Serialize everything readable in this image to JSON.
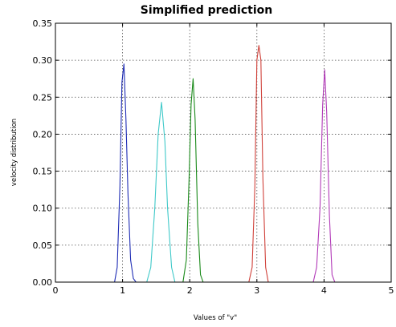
{
  "chart_data": {
    "type": "line",
    "title": "Simplified prediction",
    "xlabel": "Values of \"v\"",
    "ylabel": "velocity distribution",
    "xlim": [
      0,
      5
    ],
    "ylim": [
      0,
      0.35
    ],
    "xticks": [
      0,
      1,
      2,
      3,
      4,
      5
    ],
    "xtick_labels": [
      "0",
      "1",
      "2",
      "3",
      "4",
      "5"
    ],
    "yticks": [
      0,
      0.05,
      0.1,
      0.15,
      0.2,
      0.25,
      0.3,
      0.35
    ],
    "ytick_labels": [
      "0.00",
      "0.05",
      "0.10",
      "0.15",
      "0.20",
      "0.25",
      "0.30",
      "0.35"
    ],
    "grid": true,
    "legend": "none",
    "series": [
      {
        "color": "#1f2db5",
        "x": [
          0.88,
          0.92,
          0.96,
          0.99,
          1.02,
          1.05,
          1.08,
          1.12,
          1.16,
          1.2
        ],
        "y": [
          0.0,
          0.02,
          0.13,
          0.27,
          0.295,
          0.22,
          0.12,
          0.03,
          0.005,
          0.0
        ]
      },
      {
        "color": "#3fc9c9",
        "x": [
          1.36,
          1.42,
          1.48,
          1.53,
          1.58,
          1.63,
          1.67,
          1.73,
          1.78
        ],
        "y": [
          0.0,
          0.02,
          0.1,
          0.2,
          0.243,
          0.19,
          0.1,
          0.02,
          0.0
        ]
      },
      {
        "color": "#1a8a1a",
        "x": [
          1.9,
          1.95,
          1.99,
          2.02,
          2.05,
          2.08,
          2.12,
          2.16,
          2.2
        ],
        "y": [
          0.0,
          0.03,
          0.14,
          0.24,
          0.275,
          0.22,
          0.08,
          0.01,
          0.0
        ]
      },
      {
        "color": "#d0413a",
        "x": [
          2.88,
          2.93,
          2.97,
          3.0,
          3.03,
          3.06,
          3.09,
          3.13,
          3.17
        ],
        "y": [
          0.0,
          0.02,
          0.13,
          0.3,
          0.32,
          0.3,
          0.14,
          0.02,
          0.0
        ]
      },
      {
        "color": "#b23ab8",
        "x": [
          3.84,
          3.89,
          3.94,
          3.98,
          4.01,
          4.04,
          4.08,
          4.12,
          4.16
        ],
        "y": [
          0.0,
          0.02,
          0.1,
          0.24,
          0.287,
          0.23,
          0.09,
          0.01,
          0.0
        ]
      }
    ]
  }
}
